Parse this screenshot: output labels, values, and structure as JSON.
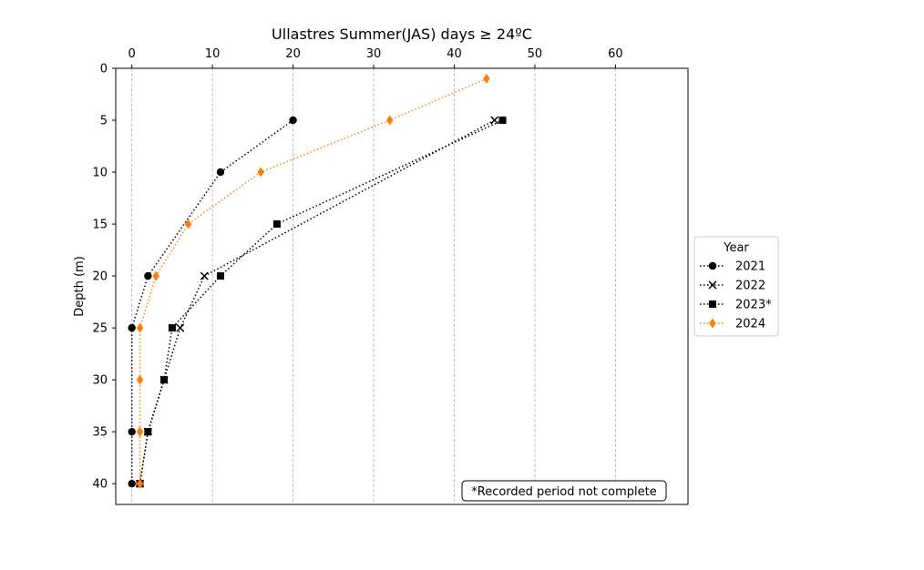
{
  "chart_data": {
    "type": "line",
    "title": "Ullastres Summer(JAS) days ≥ 24ºC",
    "xlabel": "",
    "ylabel": "Depth (m)",
    "x_axis_position": "top",
    "y_axis_inverted": true,
    "xlim": [
      -2,
      69
    ],
    "ylim": [
      42,
      0
    ],
    "x_ticks": [
      0,
      10,
      20,
      30,
      40,
      50,
      60
    ],
    "y_ticks": [
      0,
      5,
      10,
      15,
      20,
      25,
      30,
      35,
      40
    ],
    "grid": "vertical dashed lines at x ticks",
    "legend": {
      "title": "Year",
      "placement": "outside right, vertically centered"
    },
    "annotation": "*Recorded period not complete",
    "series": [
      {
        "name": "2021",
        "marker": "circle",
        "line_style": "dotted",
        "color": "#000000",
        "points": [
          {
            "x": 20,
            "y": 5
          },
          {
            "x": 11,
            "y": 10
          },
          {
            "x": 2,
            "y": 20
          },
          {
            "x": 0,
            "y": 25
          },
          {
            "x": 0,
            "y": 35
          },
          {
            "x": 0,
            "y": 40
          }
        ]
      },
      {
        "name": "2022",
        "marker": "x",
        "line_style": "dotted",
        "color": "#000000",
        "points": [
          {
            "x": 45,
            "y": 5
          },
          {
            "x": 9,
            "y": 20
          },
          {
            "x": 6,
            "y": 25
          },
          {
            "x": 4,
            "y": 30
          },
          {
            "x": 2,
            "y": 35
          },
          {
            "x": 1,
            "y": 40
          }
        ]
      },
      {
        "name": "2023*",
        "marker": "square",
        "line_style": "dotted",
        "color": "#000000",
        "points": [
          {
            "x": 46,
            "y": 5
          },
          {
            "x": 18,
            "y": 15
          },
          {
            "x": 11,
            "y": 20
          },
          {
            "x": 5,
            "y": 25
          },
          {
            "x": 4,
            "y": 30
          },
          {
            "x": 2,
            "y": 35
          },
          {
            "x": 1,
            "y": 40
          }
        ]
      },
      {
        "name": "2024",
        "marker": "diamond",
        "line_style": "dotted",
        "color": "#ff7f0e",
        "points": [
          {
            "x": 44,
            "y": 1
          },
          {
            "x": 32,
            "y": 5
          },
          {
            "x": 16,
            "y": 10
          },
          {
            "x": 7,
            "y": 15
          },
          {
            "x": 3,
            "y": 20
          },
          {
            "x": 1,
            "y": 25
          },
          {
            "x": 1,
            "y": 30
          },
          {
            "x": 1,
            "y": 35
          },
          {
            "x": 1,
            "y": 40
          }
        ]
      }
    ]
  }
}
